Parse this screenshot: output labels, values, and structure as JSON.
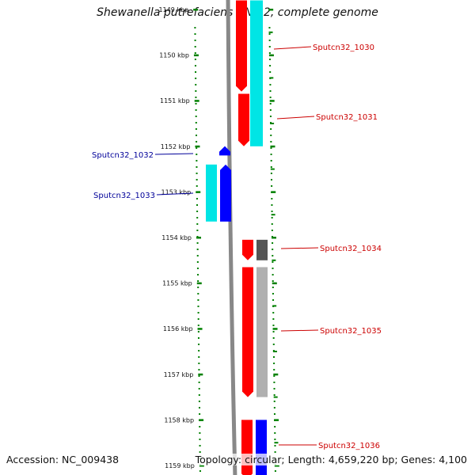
{
  "title": "Shewanella putrefaciens CN-32, complete genome",
  "accession": "Accession: NC_009438",
  "topology": "Topology: circular; Length: 4,659,220 bp; Genes: 4,100",
  "colors": {
    "ruler": "#008000",
    "backbone": "#888888",
    "forward_label": "#cc0000",
    "reverse_label": "#000099",
    "gene_red": "#ff0000",
    "gene_blue": "#0000ff",
    "gene_cyan": "#00e5e5",
    "gene_dark_gray": "#555555",
    "gene_light_gray": "#b0b0b0"
  },
  "ruler": {
    "unit": "kbp",
    "ticks": [
      {
        "kbp": 1149,
        "label": "1149 kbp"
      },
      {
        "kbp": 1150,
        "label": "1150 kbp"
      },
      {
        "kbp": 1151,
        "label": "1151 kbp"
      },
      {
        "kbp": 1152,
        "label": "1152 kbp"
      },
      {
        "kbp": 1153,
        "label": "1153 kbp"
      },
      {
        "kbp": 1154,
        "label": "1154 kbp"
      },
      {
        "kbp": 1155,
        "label": "1155 kbp"
      },
      {
        "kbp": 1156,
        "label": "1156 kbp"
      },
      {
        "kbp": 1157,
        "label": "1157 kbp"
      },
      {
        "kbp": 1158,
        "label": "1158 kbp"
      },
      {
        "kbp": 1159,
        "label": "1159 kbp"
      }
    ]
  },
  "genes": [
    {
      "id": "Sputcn32_1030",
      "strand": "+",
      "start_kbp": 1148.8,
      "end_kbp": 1150.8,
      "color": "gene_red",
      "cog_color": "gene_cyan",
      "cog_end_kbp": 1152.0
    },
    {
      "id": "Sputcn32_1031",
      "strand": "+",
      "start_kbp": 1150.85,
      "end_kbp": 1152.0,
      "color": "gene_red"
    },
    {
      "id": "Sputcn32_1032",
      "strand": "-",
      "start_kbp": 1152.05,
      "end_kbp": 1152.2,
      "color": "gene_blue"
    },
    {
      "id": "Sputcn32_1033",
      "strand": "-",
      "start_kbp": 1152.4,
      "end_kbp": 1153.65,
      "color": "gene_blue",
      "cog_color": "gene_cyan"
    },
    {
      "id": "Sputcn32_1034",
      "strand": "+",
      "start_kbp": 1154.05,
      "end_kbp": 1154.5,
      "color": "gene_red",
      "cog_color": "gene_dark_gray"
    },
    {
      "id": "Sputcn32_1035",
      "strand": "+",
      "start_kbp": 1154.65,
      "end_kbp": 1157.5,
      "color": "gene_red",
      "cog_color": "gene_light_gray"
    },
    {
      "id": "Sputcn32_1036",
      "strand": "+",
      "start_kbp": 1158.0,
      "end_kbp": 1159.3,
      "color": "gene_red",
      "cog_color": "gene_blue"
    }
  ]
}
